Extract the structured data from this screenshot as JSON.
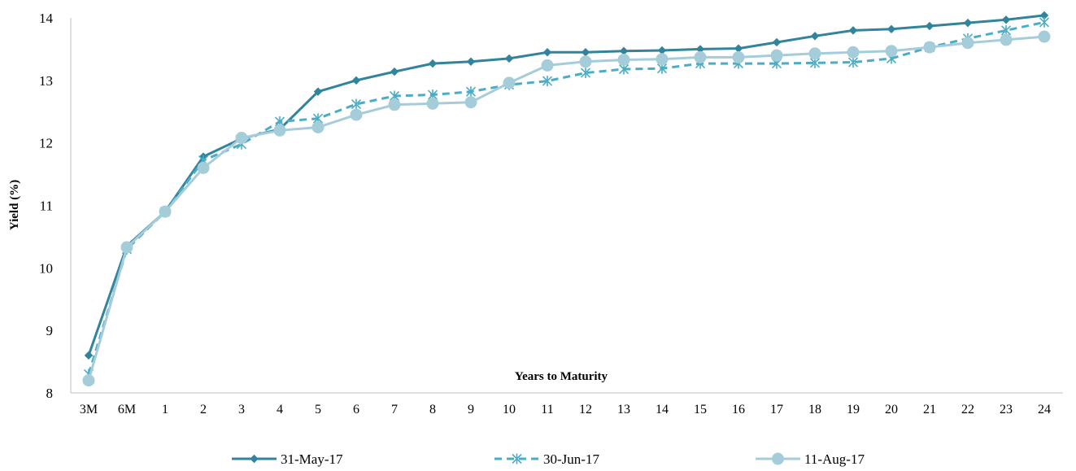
{
  "chart_data": {
    "type": "line",
    "title": "",
    "xlabel": "Years to Maturity",
    "ylabel": "Yield (%)",
    "ylim": [
      8,
      14
    ],
    "yticks": [
      8,
      9,
      10,
      11,
      12,
      13,
      14
    ],
    "grid": false,
    "legend_position": "bottom",
    "categories": [
      "3M",
      "6M",
      "1",
      "2",
      "3",
      "4",
      "5",
      "6",
      "7",
      "8",
      "9",
      "10",
      "11",
      "12",
      "13",
      "14",
      "15",
      "16",
      "17",
      "18",
      "19",
      "20",
      "21",
      "22",
      "23",
      "24"
    ],
    "series": [
      {
        "name": "31-May-17",
        "color": "#31849b",
        "style": "solid",
        "marker": "diamond",
        "values": [
          8.6,
          10.35,
          10.9,
          11.78,
          12.07,
          12.22,
          12.82,
          13.0,
          13.14,
          13.27,
          13.3,
          13.35,
          13.45,
          13.45,
          13.47,
          13.48,
          13.5,
          13.51,
          13.61,
          13.71,
          13.8,
          13.82,
          13.87,
          13.92,
          13.97,
          14.04
        ]
      },
      {
        "name": "30-Jun-17",
        "color": "#4bacc6",
        "style": "dashed",
        "marker": "asterisk",
        "values": [
          8.3,
          10.3,
          10.9,
          11.72,
          11.98,
          12.34,
          12.39,
          12.62,
          12.75,
          12.77,
          12.82,
          12.93,
          12.99,
          13.12,
          13.18,
          13.19,
          13.27,
          13.27,
          13.27,
          13.28,
          13.29,
          13.35,
          13.53,
          13.67,
          13.8,
          13.93
        ]
      },
      {
        "name": "11-Aug-17",
        "color": "#a5cdd9",
        "style": "solid",
        "marker": "circle",
        "values": [
          8.2,
          10.33,
          10.9,
          11.6,
          12.08,
          12.2,
          12.25,
          12.45,
          12.61,
          12.63,
          12.65,
          12.96,
          13.24,
          13.3,
          13.33,
          13.34,
          13.37,
          13.37,
          13.4,
          13.43,
          13.45,
          13.47,
          13.53,
          13.6,
          13.65,
          13.7
        ]
      }
    ]
  }
}
